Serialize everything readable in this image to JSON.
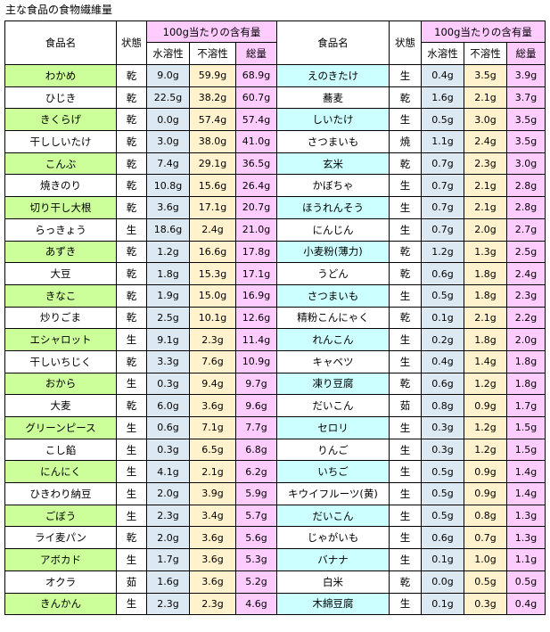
{
  "title": "主な食品の食物繊維量",
  "headers": {
    "food": "食品名",
    "state": "状態",
    "amount": "100g当たりの含有量",
    "soluble": "水溶性",
    "insoluble": "不溶性",
    "total": "総量"
  },
  "colors": {
    "green": "#ccff99",
    "cyan": "#ccffff",
    "soluble": "#dde9f2",
    "insoluble": "#fff2cc",
    "total": "#ffccff"
  },
  "left": [
    {
      "name": "わかめ",
      "state": "乾",
      "sol": "9.0g",
      "ins": "59.9g",
      "tot": "68.9g",
      "hl": true
    },
    {
      "name": "ひじき",
      "state": "乾",
      "sol": "22.5g",
      "ins": "38.2g",
      "tot": "60.7g",
      "hl": false
    },
    {
      "name": "きくらげ",
      "state": "乾",
      "sol": "0.0g",
      "ins": "57.4g",
      "tot": "57.4g",
      "hl": true
    },
    {
      "name": "干ししいたけ",
      "state": "乾",
      "sol": "3.0g",
      "ins": "38.0g",
      "tot": "41.0g",
      "hl": false
    },
    {
      "name": "こんぶ",
      "state": "乾",
      "sol": "7.4g",
      "ins": "29.1g",
      "tot": "36.5g",
      "hl": true
    },
    {
      "name": "焼きのり",
      "state": "乾",
      "sol": "10.8g",
      "ins": "15.6g",
      "tot": "26.4g",
      "hl": false
    },
    {
      "name": "切り干し大根",
      "state": "乾",
      "sol": "3.6g",
      "ins": "17.1g",
      "tot": "20.7g",
      "hl": true
    },
    {
      "name": "らっきょう",
      "state": "生",
      "sol": "18.6g",
      "ins": "2.4g",
      "tot": "21.0g",
      "hl": false
    },
    {
      "name": "あずき",
      "state": "乾",
      "sol": "1.2g",
      "ins": "16.6g",
      "tot": "17.8g",
      "hl": true
    },
    {
      "name": "大豆",
      "state": "乾",
      "sol": "1.8g",
      "ins": "15.3g",
      "tot": "17.1g",
      "hl": false
    },
    {
      "name": "きなこ",
      "state": "乾",
      "sol": "1.9g",
      "ins": "15.0g",
      "tot": "16.9g",
      "hl": true
    },
    {
      "name": "炒りごま",
      "state": "乾",
      "sol": "2.5g",
      "ins": "10.1g",
      "tot": "12.6g",
      "hl": false
    },
    {
      "name": "エシャロット",
      "state": "生",
      "sol": "9.1g",
      "ins": "2.3g",
      "tot": "11.4g",
      "hl": true
    },
    {
      "name": "干しいちじく",
      "state": "乾",
      "sol": "3.3g",
      "ins": "7.6g",
      "tot": "10.9g",
      "hl": false
    },
    {
      "name": "おから",
      "state": "生",
      "sol": "0.3g",
      "ins": "9.4g",
      "tot": "9.7g",
      "hl": true
    },
    {
      "name": "大麦",
      "state": "乾",
      "sol": "6.0g",
      "ins": "3.6g",
      "tot": "9.6g",
      "hl": false
    },
    {
      "name": "グリーンピース",
      "state": "生",
      "sol": "0.6g",
      "ins": "7.1g",
      "tot": "7.7g",
      "hl": true
    },
    {
      "name": "こし餡",
      "state": "生",
      "sol": "0.3g",
      "ins": "6.5g",
      "tot": "6.8g",
      "hl": false
    },
    {
      "name": "にんにく",
      "state": "生",
      "sol": "4.1g",
      "ins": "2.1g",
      "tot": "6.2g",
      "hl": true
    },
    {
      "name": "ひきわり納豆",
      "state": "生",
      "sol": "2.0g",
      "ins": "3.9g",
      "tot": "5.9g",
      "hl": false
    },
    {
      "name": "ごぼう",
      "state": "生",
      "sol": "2.3g",
      "ins": "3.4g",
      "tot": "5.7g",
      "hl": true
    },
    {
      "name": "ライ麦パン",
      "state": "乾",
      "sol": "2.0g",
      "ins": "3.6g",
      "tot": "5.6g",
      "hl": false
    },
    {
      "name": "アボカド",
      "state": "生",
      "sol": "1.7g",
      "ins": "3.6g",
      "tot": "5.3g",
      "hl": true
    },
    {
      "name": "オクラ",
      "state": "茹",
      "sol": "1.6g",
      "ins": "3.6g",
      "tot": "5.2g",
      "hl": false
    },
    {
      "name": "きんかん",
      "state": "生",
      "sol": "2.3g",
      "ins": "2.3g",
      "tot": "4.6g",
      "hl": true
    }
  ],
  "right": [
    {
      "name": "えのきたけ",
      "state": "生",
      "sol": "0.4g",
      "ins": "3.5g",
      "tot": "3.9g",
      "hl": true
    },
    {
      "name": "蕎麦",
      "state": "乾",
      "sol": "1.6g",
      "ins": "2.1g",
      "tot": "3.7g",
      "hl": false
    },
    {
      "name": "しいたけ",
      "state": "生",
      "sol": "0.5g",
      "ins": "3.0g",
      "tot": "3.5g",
      "hl": true
    },
    {
      "name": "さつまいも",
      "state": "焼",
      "sol": "1.1g",
      "ins": "2.4g",
      "tot": "3.5g",
      "hl": false
    },
    {
      "name": "玄米",
      "state": "乾",
      "sol": "0.7g",
      "ins": "2.3g",
      "tot": "3.0g",
      "hl": true
    },
    {
      "name": "かぼちゃ",
      "state": "生",
      "sol": "0.7g",
      "ins": "2.1g",
      "tot": "2.8g",
      "hl": false
    },
    {
      "name": "ほうれんそう",
      "state": "生",
      "sol": "0.7g",
      "ins": "2.1g",
      "tot": "2.8g",
      "hl": true
    },
    {
      "name": "にんじん",
      "state": "生",
      "sol": "0.7g",
      "ins": "2.0g",
      "tot": "2.7g",
      "hl": false
    },
    {
      "name": "小麦粉(薄力)",
      "state": "乾",
      "sol": "1.2g",
      "ins": "1.3g",
      "tot": "2.5g",
      "hl": true
    },
    {
      "name": "うどん",
      "state": "乾",
      "sol": "0.6g",
      "ins": "1.8g",
      "tot": "2.4g",
      "hl": false
    },
    {
      "name": "さつまいも",
      "state": "生",
      "sol": "0.5g",
      "ins": "1.8g",
      "tot": "2.3g",
      "hl": true
    },
    {
      "name": "精粉こんにゃく",
      "state": "乾",
      "sol": "0.1g",
      "ins": "2.1g",
      "tot": "2.2g",
      "hl": false
    },
    {
      "name": "れんこん",
      "state": "生",
      "sol": "0.2g",
      "ins": "1.8g",
      "tot": "2.0g",
      "hl": true
    },
    {
      "name": "キャベツ",
      "state": "生",
      "sol": "0.4g",
      "ins": "1.4g",
      "tot": "1.8g",
      "hl": false
    },
    {
      "name": "凍り豆腐",
      "state": "乾",
      "sol": "0.6g",
      "ins": "1.2g",
      "tot": "1.8g",
      "hl": true
    },
    {
      "name": "だいこん",
      "state": "茹",
      "sol": "0.8g",
      "ins": "0.9g",
      "tot": "1.7g",
      "hl": false
    },
    {
      "name": "セロリ",
      "state": "生",
      "sol": "0.3g",
      "ins": "1.2g",
      "tot": "1.5g",
      "hl": true
    },
    {
      "name": "りんご",
      "state": "生",
      "sol": "0.3g",
      "ins": "1.2g",
      "tot": "1.5g",
      "hl": false
    },
    {
      "name": "いちご",
      "state": "生",
      "sol": "0.5g",
      "ins": "0.9g",
      "tot": "1.4g",
      "hl": true
    },
    {
      "name": "キウイフルーツ(黄)",
      "state": "生",
      "sol": "0.5g",
      "ins": "0.9g",
      "tot": "1.4g",
      "hl": false
    },
    {
      "name": "だいこん",
      "state": "生",
      "sol": "0.5g",
      "ins": "0.8g",
      "tot": "1.3g",
      "hl": true
    },
    {
      "name": "じゃがいも",
      "state": "生",
      "sol": "0.6g",
      "ins": "0.7g",
      "tot": "1.3g",
      "hl": false
    },
    {
      "name": "バナナ",
      "state": "生",
      "sol": "0.1g",
      "ins": "1.0g",
      "tot": "1.1g",
      "hl": true
    },
    {
      "name": "白米",
      "state": "乾",
      "sol": "0.0g",
      "ins": "0.5g",
      "tot": "0.5g",
      "hl": false
    },
    {
      "name": "木綿豆腐",
      "state": "生",
      "sol": "0.1g",
      "ins": "0.3g",
      "tot": "0.4g",
      "hl": true
    }
  ]
}
